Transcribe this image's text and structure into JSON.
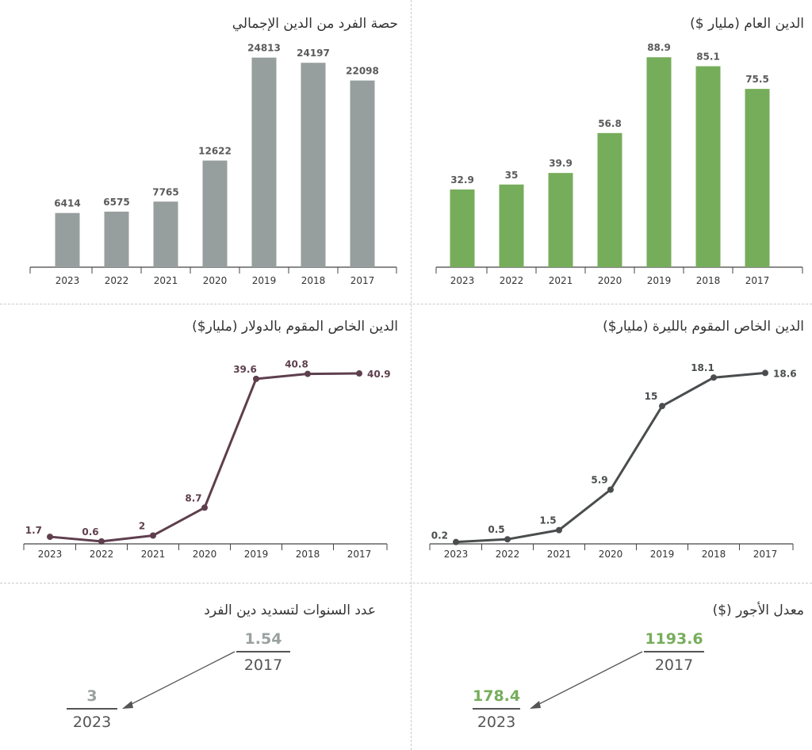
{
  "chart_data": [
    {
      "id": "per_capita",
      "type": "bar",
      "title": "حصة الفرد من الدين الإجمالي",
      "categories": [
        "2023",
        "2022",
        "2021",
        "2020",
        "2019",
        "2018",
        "2017"
      ],
      "values": [
        6414,
        6575,
        7765,
        12622,
        24813,
        24197,
        22098
      ],
      "labels": [
        "6414",
        "6575",
        "7765",
        "12622",
        "24813",
        "24197",
        "22098"
      ],
      "color": "#979e9e",
      "ylim": [
        0,
        26000
      ]
    },
    {
      "id": "public_debt",
      "type": "bar",
      "title": "الدين العام (مليار $)",
      "categories": [
        "2023",
        "2022",
        "2021",
        "2020",
        "2019",
        "2018",
        "2017"
      ],
      "values": [
        32.9,
        35,
        39.9,
        56.8,
        88.9,
        85.1,
        75.5
      ],
      "labels": [
        "32.9",
        "35",
        "39.9",
        "56.8",
        "88.9",
        "85.1",
        "75.5"
      ],
      "color": "#76ad5b",
      "ylim": [
        0,
        93
      ]
    },
    {
      "id": "private_usd",
      "type": "line",
      "title": "الدين الخاص المقوم بالدولار (مليار$)",
      "categories": [
        "2023",
        "2022",
        "2021",
        "2020",
        "2019",
        "2018",
        "2017"
      ],
      "values": [
        1.7,
        0.6,
        2,
        8.7,
        39.6,
        40.8,
        40.9
      ],
      "labels": [
        "1.7",
        "0.6",
        "2",
        "8.7",
        "39.6",
        "40.8",
        "40.9"
      ],
      "color": "#5e3f4d",
      "ylim": [
        0,
        43
      ]
    },
    {
      "id": "private_lbp",
      "type": "line",
      "title": "الدين الخاص المقوم بالليرة (مليار$)",
      "categories": [
        "2023",
        "2022",
        "2021",
        "2020",
        "2019",
        "2018",
        "2017"
      ],
      "values": [
        0.2,
        0.5,
        1.5,
        5.9,
        15,
        18.1,
        18.6
      ],
      "labels": [
        "0.2",
        "0.5",
        "1.5",
        "5.9",
        "15",
        "18.1",
        "18.6"
      ],
      "color": "#4a4d4e",
      "ylim": [
        0,
        19.5
      ]
    }
  ],
  "repay": {
    "title": "عدد السنوات لتسديد دين الفرد",
    "from_value": "1.54",
    "from_year": "2017",
    "to_value": "3",
    "to_year": "2023",
    "color": "#9aa1a1"
  },
  "wages": {
    "title": "معدل الأجور ($)",
    "from_value": "1193.6",
    "from_year": "2017",
    "to_value": "178.4",
    "to_year": "2023",
    "color": "#76ad5b"
  }
}
